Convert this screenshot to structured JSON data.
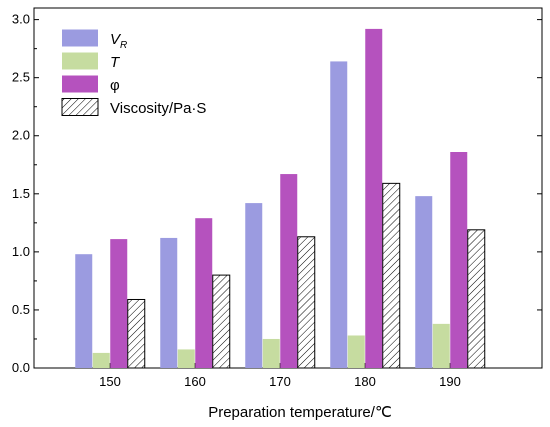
{
  "chart_data": {
    "type": "bar",
    "title": "",
    "xlabel": "Preparation temperature/℃",
    "ylabel": "",
    "categories": [
      "150",
      "160",
      "170",
      "180",
      "190"
    ],
    "ylim": [
      0,
      3.1
    ],
    "yticks": [
      "0.0",
      "0.5",
      "1.0",
      "1.5",
      "2.0",
      "2.5",
      "3.0"
    ],
    "grid": false,
    "legend_position": "top-left",
    "series": [
      {
        "name": "V",
        "subscript": "R",
        "italic": true,
        "color": "#9b9be0",
        "pattern": false,
        "values": [
          0.98,
          1.12,
          1.42,
          2.64,
          1.48
        ]
      },
      {
        "name": "T",
        "italic": true,
        "color": "#c6dca0",
        "pattern": false,
        "values": [
          0.13,
          0.16,
          0.25,
          0.28,
          0.38
        ]
      },
      {
        "name": "φ",
        "italic": false,
        "color": "#b552be",
        "pattern": false,
        "values": [
          1.11,
          1.29,
          1.67,
          2.92,
          1.86
        ]
      },
      {
        "name": "Viscosity/Pa·S",
        "italic": false,
        "color": "#ffffff",
        "pattern": true,
        "values": [
          0.59,
          0.8,
          1.13,
          1.59,
          1.19
        ]
      }
    ]
  }
}
